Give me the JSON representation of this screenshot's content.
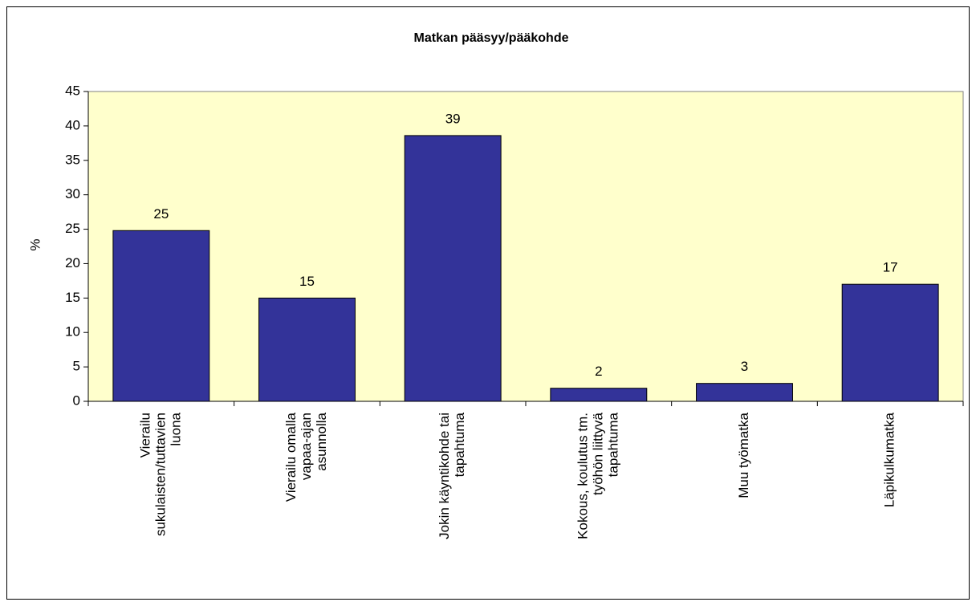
{
  "chart_data": {
    "type": "bar",
    "title": "Matkan pääsyy/pääkohde",
    "y_label": "%",
    "categories": [
      [
        "Vierailu",
        "sukulaisten/tuttavien",
        "luona"
      ],
      [
        "Vierailu omalla",
        "vapaa-ajan",
        "asunnolla"
      ],
      [
        "Jokin käyntikohde tai",
        "tapahtuma"
      ],
      [
        "Kokous, koulutus tm.",
        "työhön liittyvä",
        "tapahtuma"
      ],
      [
        "Muu työmatka"
      ],
      [
        "Läpikulkumatka"
      ]
    ],
    "values": [
      24.8,
      15,
      38.6,
      1.9,
      2.6,
      17
    ],
    "value_labels": [
      "25",
      "15",
      "39",
      "2",
      "3",
      "17"
    ],
    "color": "#333399",
    "ylim": [
      0,
      45
    ],
    "yticks": [
      0,
      5,
      10,
      15,
      20,
      25,
      30,
      35,
      40,
      45
    ],
    "grid": false
  }
}
